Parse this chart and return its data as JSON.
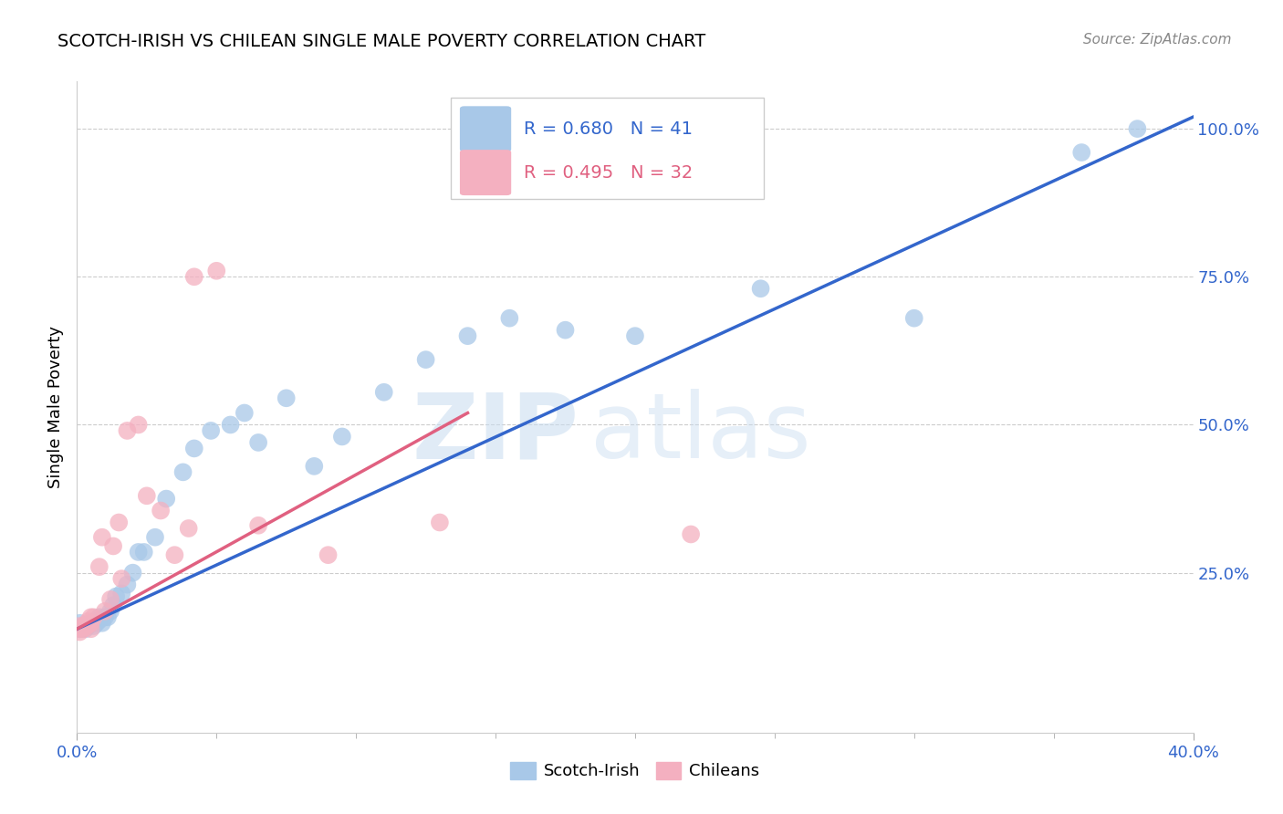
{
  "title": "SCOTCH-IRISH VS CHILEAN SINGLE MALE POVERTY CORRELATION CHART",
  "source": "Source: ZipAtlas.com",
  "ylabel": "Single Male Poverty",
  "ytick_labels": [
    "25.0%",
    "50.0%",
    "75.0%",
    "100.0%"
  ],
  "ytick_values": [
    0.25,
    0.5,
    0.75,
    1.0
  ],
  "legend_blue_r": "R = 0.680",
  "legend_blue_n": "N = 41",
  "legend_pink_r": "R = 0.495",
  "legend_pink_n": "N = 32",
  "blue_color": "#A8C8E8",
  "pink_color": "#F4B0C0",
  "blue_line_color": "#3366CC",
  "pink_line_color": "#E06080",
  "watermark_zip": "ZIP",
  "watermark_atlas": "atlas",
  "xlim": [
    0.0,
    0.4
  ],
  "ylim": [
    -0.02,
    1.08
  ],
  "blue_scatter_x": [
    0.001,
    0.001,
    0.003,
    0.004,
    0.005,
    0.006,
    0.007,
    0.008,
    0.008,
    0.009,
    0.01,
    0.011,
    0.012,
    0.013,
    0.014,
    0.016,
    0.018,
    0.02,
    0.022,
    0.024,
    0.028,
    0.032,
    0.038,
    0.042,
    0.048,
    0.055,
    0.06,
    0.065,
    0.075,
    0.085,
    0.095,
    0.11,
    0.125,
    0.14,
    0.155,
    0.175,
    0.2,
    0.245,
    0.3,
    0.36,
    0.38
  ],
  "blue_scatter_y": [
    0.155,
    0.165,
    0.155,
    0.16,
    0.165,
    0.16,
    0.165,
    0.17,
    0.175,
    0.165,
    0.175,
    0.175,
    0.185,
    0.195,
    0.21,
    0.215,
    0.23,
    0.25,
    0.285,
    0.285,
    0.31,
    0.375,
    0.42,
    0.46,
    0.49,
    0.5,
    0.52,
    0.47,
    0.545,
    0.43,
    0.48,
    0.555,
    0.61,
    0.65,
    0.68,
    0.66,
    0.65,
    0.73,
    0.68,
    0.96,
    1.0
  ],
  "pink_scatter_x": [
    0.001,
    0.001,
    0.001,
    0.002,
    0.002,
    0.003,
    0.003,
    0.004,
    0.004,
    0.005,
    0.005,
    0.005,
    0.006,
    0.008,
    0.009,
    0.01,
    0.012,
    0.013,
    0.015,
    0.016,
    0.018,
    0.022,
    0.025,
    0.03,
    0.035,
    0.04,
    0.042,
    0.05,
    0.065,
    0.09,
    0.13,
    0.22
  ],
  "pink_scatter_y": [
    0.15,
    0.155,
    0.16,
    0.155,
    0.158,
    0.158,
    0.162,
    0.162,
    0.168,
    0.155,
    0.165,
    0.175,
    0.175,
    0.26,
    0.31,
    0.185,
    0.205,
    0.295,
    0.335,
    0.24,
    0.49,
    0.5,
    0.38,
    0.355,
    0.28,
    0.325,
    0.75,
    0.76,
    0.33,
    0.28,
    0.335,
    0.315
  ],
  "blue_line_x": [
    0.0,
    0.4
  ],
  "blue_line_y": [
    0.155,
    1.02
  ],
  "pink_line_x": [
    0.0,
    0.14
  ],
  "pink_line_y": [
    0.155,
    0.52
  ],
  "grid_color": "#CCCCCC",
  "background_color": "#FFFFFF",
  "xtick_minor": [
    0.05,
    0.1,
    0.15,
    0.2,
    0.25,
    0.3,
    0.35
  ]
}
